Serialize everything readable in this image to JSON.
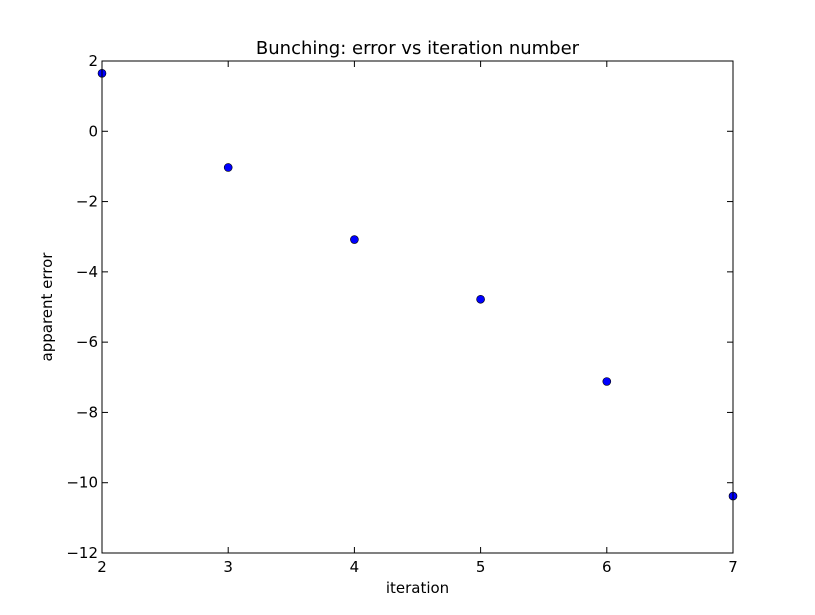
{
  "chart_data": {
    "type": "scatter",
    "title": "Bunching:  error vs iteration number",
    "xlabel": "iteration",
    "ylabel": "apparent error",
    "xlim": [
      2,
      7
    ],
    "ylim": [
      -12,
      2
    ],
    "xticks": [
      2,
      3,
      4,
      5,
      6,
      7
    ],
    "yticks": [
      2,
      0,
      -2,
      -4,
      -6,
      -8,
      -10,
      -12
    ],
    "xtick_labels": [
      "2",
      "3",
      "4",
      "5",
      "6",
      "7"
    ],
    "ytick_labels": [
      "2",
      "0",
      "−2",
      "−4",
      "−6",
      "−8",
      "−10",
      "−12"
    ],
    "grid": false,
    "marker_color": "#0000ff",
    "series": [
      {
        "x": [
          2,
          3,
          4,
          5,
          6,
          7
        ],
        "y": [
          1.65,
          -1.03,
          -3.08,
          -4.78,
          -7.12,
          -10.38
        ]
      }
    ]
  }
}
